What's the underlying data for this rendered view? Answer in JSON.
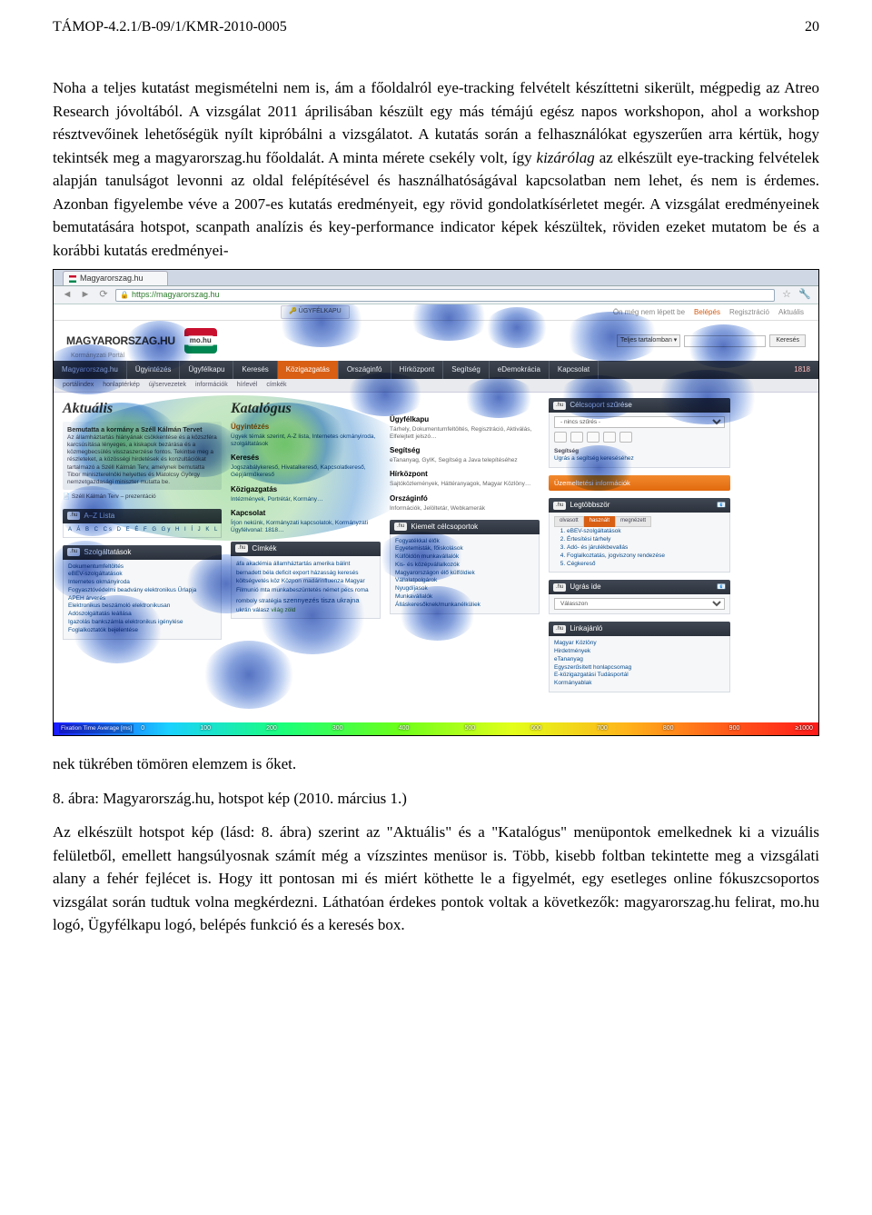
{
  "header": {
    "code": "TÁMOP-4.2.1/B-09/1/KMR-2010-0005",
    "page": "20"
  },
  "para1": "Noha a teljes kutatást megismételni nem is, ám a főoldalról eye-tracking felvételt készíttetni sikerült, mégpedig az Atreo Research jóvoltából. A vizsgálat 2011 áprilisában készült egy más témájú egész napos workshopon, ahol a workshop résztvevőinek lehetőségük nyílt kipróbálni a vizsgálatot. A kutatás során a felhasználókat egyszerűen arra kértük, hogy tekintsék meg a magyarorszag.hu főoldalát. A minta mérete csekély volt, így kizárólag az elkészült eye-tracking felvételek alapján tanulságot levonni az oldal felépítésével és használhatóságával kapcsolatban nem lehet, és nem is érdemes. Azonban figyelembe véve a 2007-es kutatás eredményeit, egy rövid gondolatkísérletet megér. A vizsgálat eredményeinek bemutatására hotspot, scanpath analízis és key-performance indicator képek készültek, röviden ezeket mutatom be és a korábbi kutatás eredményei-",
  "para2": "nek tükrében tömören elemzem is őket.",
  "caption": "8. ábra: Magyarország.hu, hotspot kép (2010. március 1.)",
  "para3": "Az elkészült hotspot kép (lásd: 8. ábra) szerint az \"Aktuális\" és a \"Katalógus\" menüpontok emelkednek ki a vizuális felületből, emellett hangsúlyosnak számít még a vízszintes menüsor is. Több, kisebb foltban tekintette meg a vizsgálati alany a fehér fejlécet is. Hogy itt pontosan mi és miért köthette le a figyelmét, egy esetleges online fókuszcsoportos vizsgálat során tudtuk volna megkérdezni. Láthatóan érdekes pontok voltak a következők: magyarorszag.hu felirat, mo.hu logó, Ügyfélkapu logó, belépés funkció és a keresés box.",
  "screenshot": {
    "browser": {
      "tab_title": "Magyarorszag.hu",
      "url": "https://magyarorszag.hu"
    },
    "topstrip": {
      "ugyfelkapu": "ÜGYFÉLKAPU",
      "status": "Ön még nem lépett be",
      "login": "Belépés",
      "register": "Regisztráció",
      "news": "Aktuális"
    },
    "brand": {
      "logo": "MAGYARORSZAG.HU",
      "tag": "Kormányzati Portál",
      "mohu": "mo.hu",
      "search_scope": "Teljes tartalomban",
      "search_btn": "Keresés"
    },
    "nav": [
      "Magyarorszag.hu",
      "Ügyintézés",
      "Ügyfélkapu",
      "Keresés",
      "Közigazgatás",
      "Országinfó",
      "Hírközpont",
      "Segítség",
      "eDemokrácia",
      "Kapcsolat",
      "1818"
    ],
    "subnav": [
      "portálindex",
      "honlaptérkép",
      "új/servezetek",
      "információk",
      "hírlevél",
      "címkék"
    ],
    "col1": {
      "head": "Aktuális",
      "story_title": "Bemutatta a kormány a Széll Kálmán Tervet",
      "story_body": "Az államháztartás hiányának csökkentése és a közszféra karcsúsítása lényeges, a kiskapuk bezárása és a közmegbecsülés visszaszerzése fontos. Tekintse meg a részleteket, a közösségi hirdetések és konzultációkat tartalmazó a Széll Kálmán Terv, amelynek bemutatta Tibor miniszterelnöki helyettes és Matolcsy György nemzetgazdasági miniszter mutatta be.",
      "story_link": "Széll Kálmán Terv – prezentáció",
      "az_title": "A–Z Lista",
      "az": "A Á B C Cs D E É F G Gy H I Í J K L M N Ny O Ó Ö Ő P R S Sz T Ty U Ú Ü Ű V W X Y Z Zs #",
      "szolg_title": "Szolgáltatások",
      "szolg_body": "Dokumentumfeltöltés\neBEV-szolgáltatások\nInternetes okmányiroda\nFogyasztóvédelmi beadvány elektronikus Űrlapja\nAPEH árverés\nElektronikus beszámoló elektronikusan\nAdószolgáltatás leállása\nIgazolás bankszámla elektronikus igénylése\nFoglalkoztatók bejelentése"
    },
    "col2": {
      "head": "Katalógus",
      "c1_h": "Ügyintézés",
      "c1_p": "Ügyek témák szerint, A-Z lista, Internetes okmányiroda, szolgáltatások",
      "c2_h": "Keresés",
      "c2_p": "Jogszabálykereső, Hivatalkereső, Kapcsolatkereső, Gépjárműkereső",
      "c3_h": "Közigazgatás",
      "c3_p": "Intézmények, Portrétár, Kormány…",
      "c4_h": "Kapcsolat",
      "c4_p": "Írjon nekünk, Kormányzati kapcsolatok, Kormányzati Ügyfélvonal: 1818…",
      "cimkek_title": "Címkék",
      "cimkek": "áfa, akadémia, államháztartás, amerika, bálint, bernadett, béla, deficit, export, házasság, keresés, költségvetés, köz, Közpon, madárinfluenza, Magyar Filmunió, mta, munkabeszüntetés, német, pécs, roma, romboly, stratégia, szennyezés, tisza, ukrajna, ukrán, válasz, világ, zöld"
    },
    "col3": {
      "c1_h": "Ügyfélkapu",
      "c1_p": "Tárhely, Dokumentumfeltöltés, Regisztráció, Aktiválás, Elfelejtett jelszó…",
      "c2_h": "Segítség",
      "c2_p": "eTananyag, GyIK, Segítség a Java telepítéséhez",
      "c3_h": "Hírközpont",
      "c3_p": "Sajtóközlemények, Háttéranyagok, Magyar Közlöny…",
      "c4_h": "Országinfó",
      "c4_p": "Információk, Jelöltetár, Webkamerák",
      "kiemelt_title": "Kiemelt célcsoportok",
      "kiemelt_body": "Fogyatékkal élők\nEgyetemisták, főiskolások\nKülföldön munkavállalók\nKis- és középvállalkozók\nMagyarországon élő külföldiek\nVállalatpolgárok\nNyugdíjasok\nMunkavállalók\nÁlláskeresőknek/munkanélküliek"
    },
    "col4": {
      "celcsoport_title": "Célcsoport szűrése",
      "celcsoport_sel": "- nincs szűrés -",
      "seg_title": "Segítség",
      "seg_body": "Ugrás a segítség kereséséhez",
      "uzem": "Üzemeltetési információk",
      "legt_title": "Legtöbbször",
      "tabs": [
        "olvasott",
        "használt",
        "megnézett"
      ],
      "legt_items": [
        "eBEV-szolgáltatások",
        "Értesítési tárhely",
        "Adó- és járulékbevallás",
        "Foglalkoztatás, jogviszony rendezése",
        "Cégkereső"
      ],
      "ugras_title": "Ugrás ide",
      "ugras_sel": "Válasszon",
      "linkaj_title": "Linkajánló",
      "linkaj_items": [
        "Magyar Közlöny",
        "Hirdetmények",
        "eTananyag",
        "Egyszerűsített honlapcsomag",
        "E-közigazgatási Tudásportál",
        "Kormányablak"
      ]
    },
    "spectrum": {
      "label": "Fixation Time Average [ms]",
      "ticks": [
        "0",
        "100",
        "200",
        "300",
        "400",
        "500",
        "600",
        "700",
        "800",
        "900",
        "≥1000"
      ]
    }
  }
}
